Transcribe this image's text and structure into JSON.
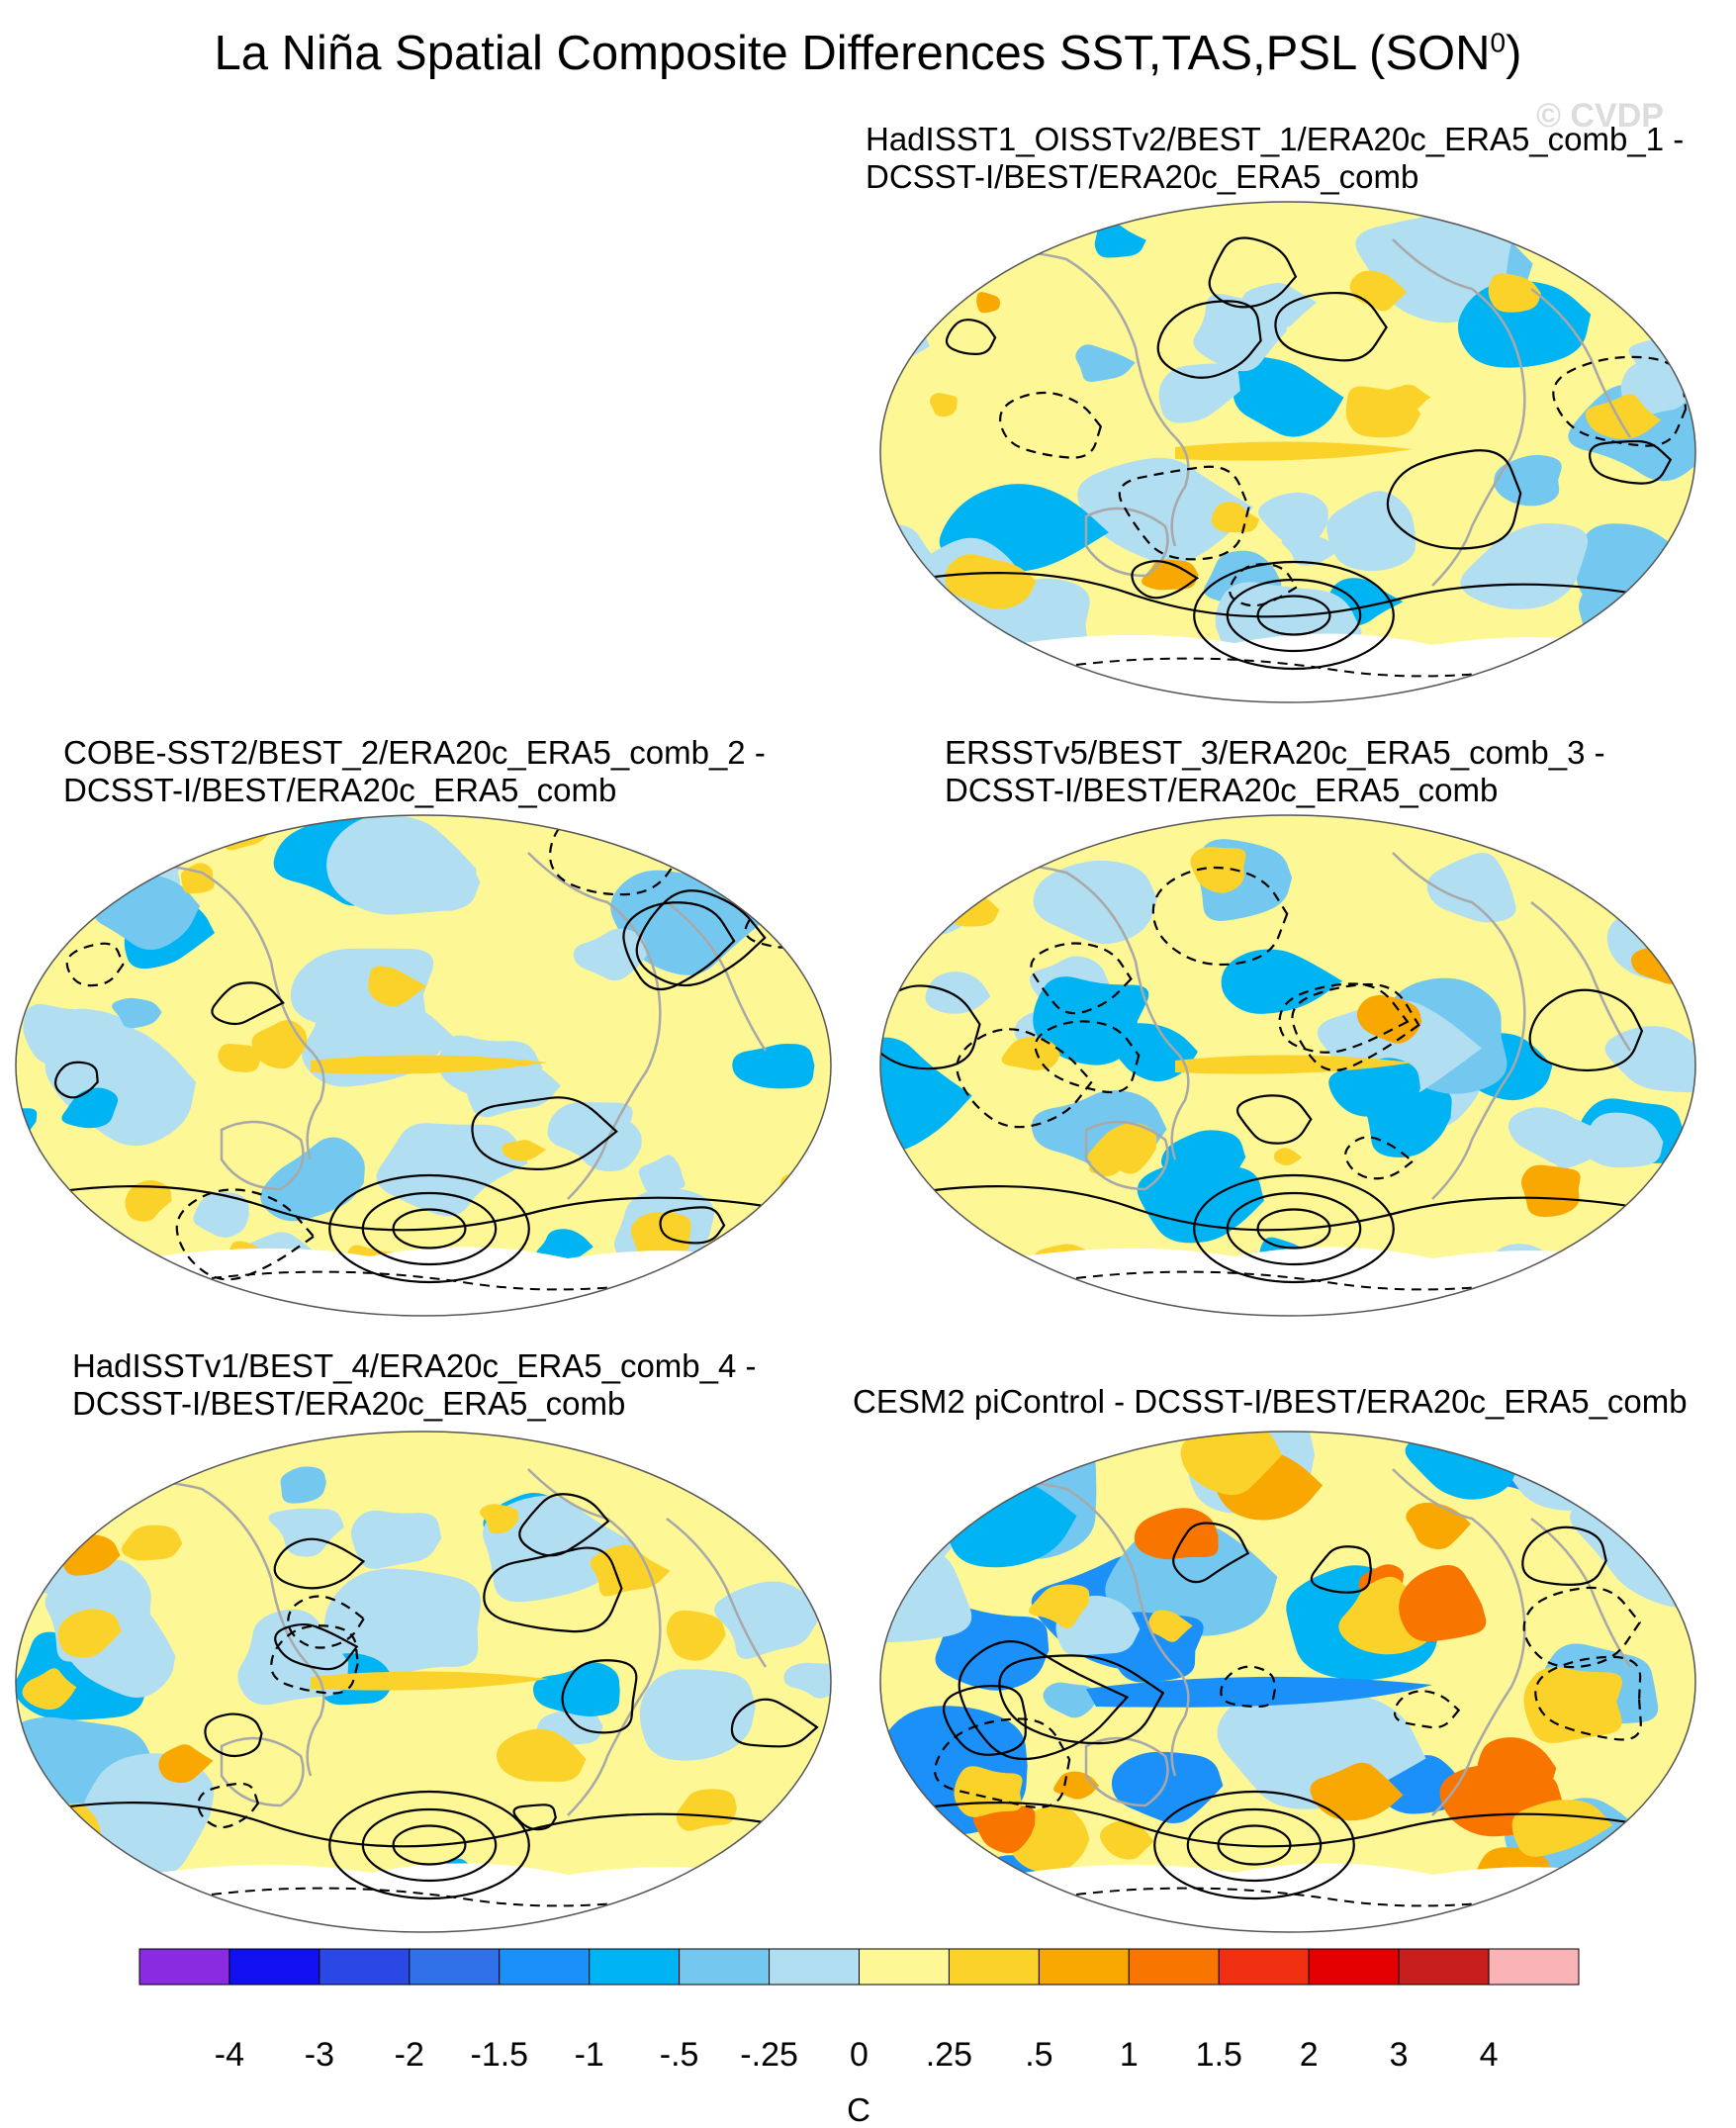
{
  "figure": {
    "title_main": "La Niña Spatial Composite Differences SST,TAS,PSL (SON",
    "title_sup": "0",
    "title_end": ")",
    "watermark": "© CVDP"
  },
  "panels": [
    {
      "id": "p1",
      "line1": "HadISST1_OISSTv2/BEST_1/ERA20c_ERA5_comb_1 -",
      "line2": "DCSST-I/BEST/ERA20c_ERA5_comb"
    },
    {
      "id": "p2",
      "line1": "COBE-SST2/BEST_2/ERA20c_ERA5_comb_2 -",
      "line2": "DCSST-I/BEST/ERA20c_ERA5_comb"
    },
    {
      "id": "p3",
      "line1": "ERSSTv5/BEST_3/ERA20c_ERA5_comb_3 -",
      "line2": "DCSST-I/BEST/ERA20c_ERA5_comb"
    },
    {
      "id": "p4",
      "line1": "HadISSTv1/BEST_4/ERA20c_ERA5_comb_4 -",
      "line2": "DCSST-I/BEST/ERA20c_ERA5_comb"
    },
    {
      "id": "p5",
      "line1": "CESM2 piControl - DCSST-I/BEST/ERA20c_ERA5_comb",
      "line2": ""
    }
  ],
  "colorbar": {
    "unit": "C",
    "labels": [
      "-4",
      "-3",
      "-2",
      "-1.5",
      "-1",
      "-.5",
      "-.25",
      "0",
      ".25",
      ".5",
      "1",
      "1.5",
      "2",
      "3",
      "4"
    ],
    "colors": [
      "#8a2be2",
      "#1010f0",
      "#2a48e6",
      "#3070e8",
      "#1a90f8",
      "#00b4f4",
      "#74c8f0",
      "#b2def2",
      "#fdf796",
      "#fbd22a",
      "#f8a800",
      "#f87600",
      "#f03010",
      "#e40000",
      "#c81e1e",
      "#fab4b8"
    ]
  },
  "palette": {
    "ocean_base": "#fdf796",
    "light_blue": "#b2def2",
    "mid_blue": "#74c8f0",
    "blue": "#00b4f4",
    "deep_blue": "#1a90f8",
    "light_orange": "#fbd22a",
    "orange": "#f8a800",
    "dark_orange": "#f87600",
    "coast": "#a8a8a8",
    "contour": "#000000"
  }
}
